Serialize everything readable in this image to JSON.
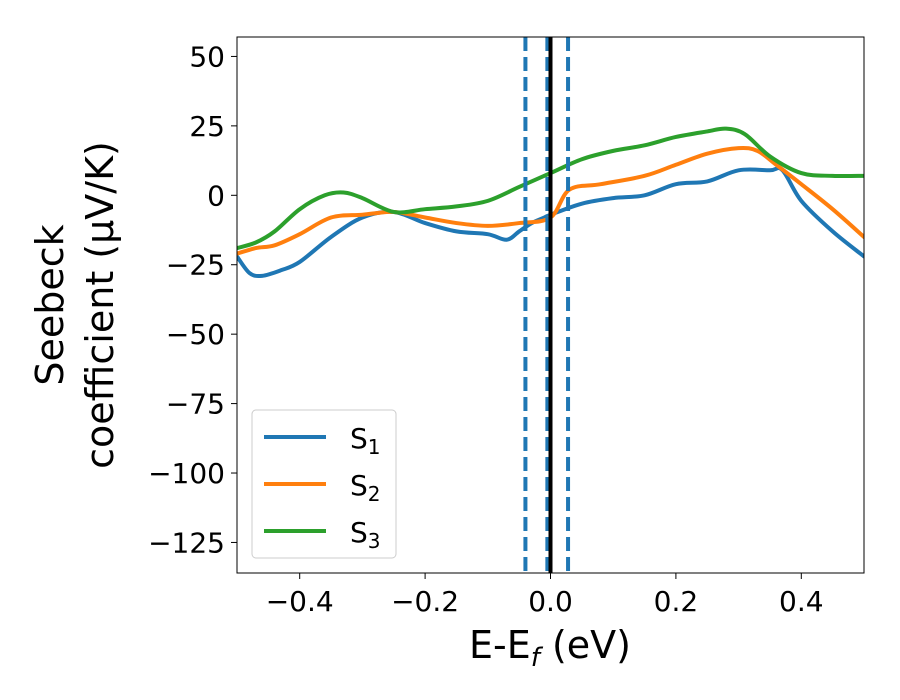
{
  "chart_data": {
    "type": "line",
    "xlabel_main": "E-E",
    "xlabel_sub": "f",
    "xlabel_unit": " (eV)",
    "ylabel_line1": "Seebeck",
    "ylabel_line2": "coefficient  (μV/K)",
    "xlim": [
      -0.5,
      0.5
    ],
    "ylim": [
      -136,
      57
    ],
    "x_ticks": [
      -0.4,
      -0.2,
      0.0,
      0.2,
      0.4
    ],
    "x_tick_labels": [
      "−0.4",
      "−0.2",
      "0.0",
      "0.2",
      "0.4"
    ],
    "y_ticks": [
      50,
      25,
      0,
      -25,
      -50,
      -75,
      -100,
      -125
    ],
    "y_tick_labels": [
      "50",
      "25",
      "0",
      "−25",
      "−50",
      "−75",
      "−100",
      "−125"
    ],
    "grid": false,
    "legend_position": "lower-left",
    "vlines": [
      {
        "x": -0.04,
        "style": "dashed",
        "color": "#1f77b4"
      },
      {
        "x": -0.005,
        "style": "dashed",
        "color": "#1f77b4"
      },
      {
        "x": 0.028,
        "style": "dashed",
        "color": "#1f77b4"
      },
      {
        "x": 0.0,
        "style": "solid",
        "color": "#000000"
      }
    ],
    "series": [
      {
        "name": "S",
        "sub": "1",
        "color": "#1f77b4",
        "x": [
          -0.5,
          -0.48,
          -0.46,
          -0.43,
          -0.4,
          -0.35,
          -0.3,
          -0.25,
          -0.2,
          -0.15,
          -0.1,
          -0.07,
          -0.05,
          -0.03,
          -0.01,
          0.0,
          0.05,
          0.1,
          0.15,
          0.2,
          0.25,
          0.3,
          0.35,
          0.37,
          0.4,
          0.45,
          0.5
        ],
        "y": [
          -22,
          -28,
          -29,
          -27,
          -24,
          -15,
          -8,
          -6,
          -10,
          -13,
          -14,
          -16,
          -13,
          -10,
          -8,
          -7,
          -3,
          -1,
          0,
          4,
          5,
          9,
          9,
          9,
          -2,
          -13,
          -22
        ]
      },
      {
        "name": "S",
        "sub": "2",
        "color": "#ff7f0e",
        "x": [
          -0.5,
          -0.47,
          -0.44,
          -0.4,
          -0.35,
          -0.3,
          -0.25,
          -0.2,
          -0.15,
          -0.1,
          -0.05,
          0.0,
          0.03,
          0.08,
          0.15,
          0.2,
          0.25,
          0.3,
          0.33,
          0.36,
          0.4,
          0.45,
          0.5
        ],
        "y": [
          -21,
          -19,
          -18,
          -14,
          -8,
          -7,
          -6,
          -8,
          -10,
          -11,
          -10,
          -8,
          2,
          4,
          7,
          11,
          15,
          17,
          16,
          11,
          4,
          -5,
          -15
        ]
      },
      {
        "name": "S",
        "sub": "3",
        "color": "#2ca02c",
        "x": [
          -0.5,
          -0.47,
          -0.44,
          -0.4,
          -0.36,
          -0.33,
          -0.3,
          -0.25,
          -0.2,
          -0.15,
          -0.1,
          -0.05,
          0.0,
          0.05,
          0.1,
          0.15,
          0.2,
          0.25,
          0.28,
          0.31,
          0.35,
          0.4,
          0.45,
          0.5
        ],
        "y": [
          -19,
          -17,
          -13,
          -5,
          0,
          1,
          -1,
          -6,
          -5,
          -4,
          -2,
          3,
          8,
          13,
          16,
          18,
          21,
          23,
          24,
          22,
          14,
          8,
          7,
          7
        ]
      }
    ]
  }
}
